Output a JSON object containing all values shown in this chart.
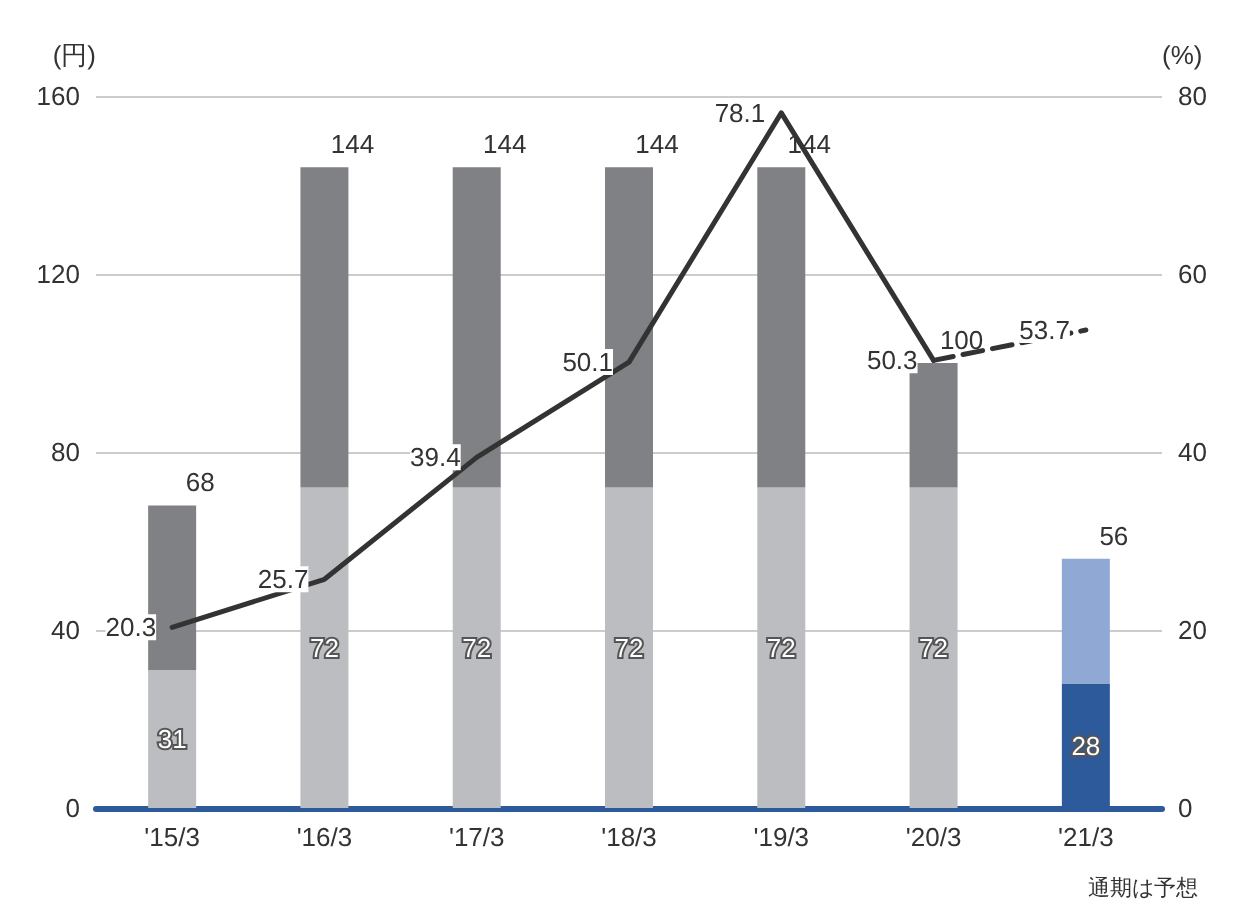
{
  "chart_data": {
    "type": "bar",
    "stacked": true,
    "categories": [
      "'15/3",
      "'16/3",
      "'17/3",
      "'18/3",
      "'19/3",
      "'20/3",
      "'21/3"
    ],
    "series": [
      {
        "colors": [
          "#bcbdc1",
          "#bcbdc1",
          "#bcbdc1",
          "#bcbdc1",
          "#bcbdc1",
          "#bcbdc1",
          "#2c5a9a"
        ],
        "values": [
          31,
          72,
          72,
          72,
          72,
          72,
          28
        ],
        "data_labels": true
      },
      {
        "colors": [
          "#808184",
          "#808184",
          "#808184",
          "#808184",
          "#808184",
          "#808184",
          "#8fa9d4"
        ],
        "values": [
          37,
          72,
          72,
          72,
          72,
          28,
          28
        ]
      },
      {
        "type": "line",
        "axis": "y2",
        "color": "#333333",
        "line_style": "solid",
        "values": [
          20.3,
          25.7,
          39.4,
          50.1,
          78.1,
          50.3,
          null
        ],
        "data_labels": true
      },
      {
        "type": "line",
        "axis": "y2",
        "color": "#333333",
        "line_style": "dashed",
        "values": [
          null,
          null,
          null,
          null,
          null,
          50.3,
          53.7
        ],
        "value_labels": [
          null,
          null,
          null,
          null,
          null,
          null,
          "53.7"
        ]
      }
    ],
    "totals": [
      "68",
      "144",
      "144",
      "144",
      "144",
      "100",
      "56"
    ],
    "ylabel": "(円)",
    "y2label": "(%)",
    "ylim": [
      0,
      160
    ],
    "yticks": [
      0,
      40,
      80,
      120,
      160
    ],
    "y2lim": [
      0,
      80
    ],
    "y2ticks": [
      0,
      20,
      40,
      60,
      80
    ],
    "grid": "y",
    "marker": "none",
    "annotations": [
      "通期は予想"
    ]
  }
}
